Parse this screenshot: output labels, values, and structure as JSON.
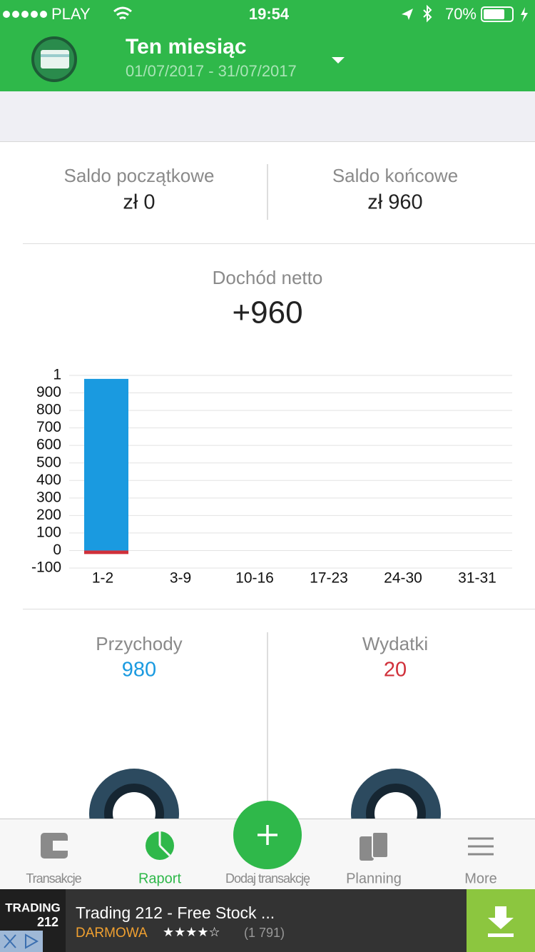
{
  "status_bar": {
    "carrier": "PLAY",
    "time": "19:54",
    "battery": "70%"
  },
  "header": {
    "title": "Ten miesiąc",
    "date_range": "01/07/2017 - 31/07/2017"
  },
  "balances": {
    "opening_label": "Saldo początkowe",
    "opening_value": "zł 0",
    "closing_label": "Saldo końcowe",
    "closing_value": "zł 960"
  },
  "net_income": {
    "label": "Dochód netto",
    "value": "+960"
  },
  "chart_data": {
    "type": "bar",
    "categories": [
      "1-2",
      "3-9",
      "10-16",
      "17-23",
      "24-30",
      "31-31"
    ],
    "series": [
      {
        "color": "#1a9ae0",
        "values": [
          980,
          0,
          0,
          0,
          0,
          0
        ]
      },
      {
        "color": "#d0303a",
        "values": [
          -20,
          0,
          0,
          0,
          0,
          0
        ]
      }
    ],
    "ylim": [
      -100,
      1000
    ],
    "yticks": [
      -100,
      0,
      100,
      200,
      300,
      400,
      500,
      600,
      700,
      800,
      900,
      {
        "value": 1000,
        "label": "1"
      }
    ],
    "grid": true
  },
  "summary": {
    "income_label": "Przychody",
    "income_value": "980",
    "expense_label": "Wydatki",
    "expense_value": "20"
  },
  "tabs": [
    "Transakcje",
    "Raport",
    "Dodaj transakcję",
    "Planning",
    "More"
  ],
  "ad": {
    "logo_top": "TRADING",
    "logo_bottom": "212",
    "title": "Trading 212 - Free Stock ...",
    "price": "DARMOWA",
    "stars": "★★★★☆",
    "reviews": "(1 791)"
  }
}
